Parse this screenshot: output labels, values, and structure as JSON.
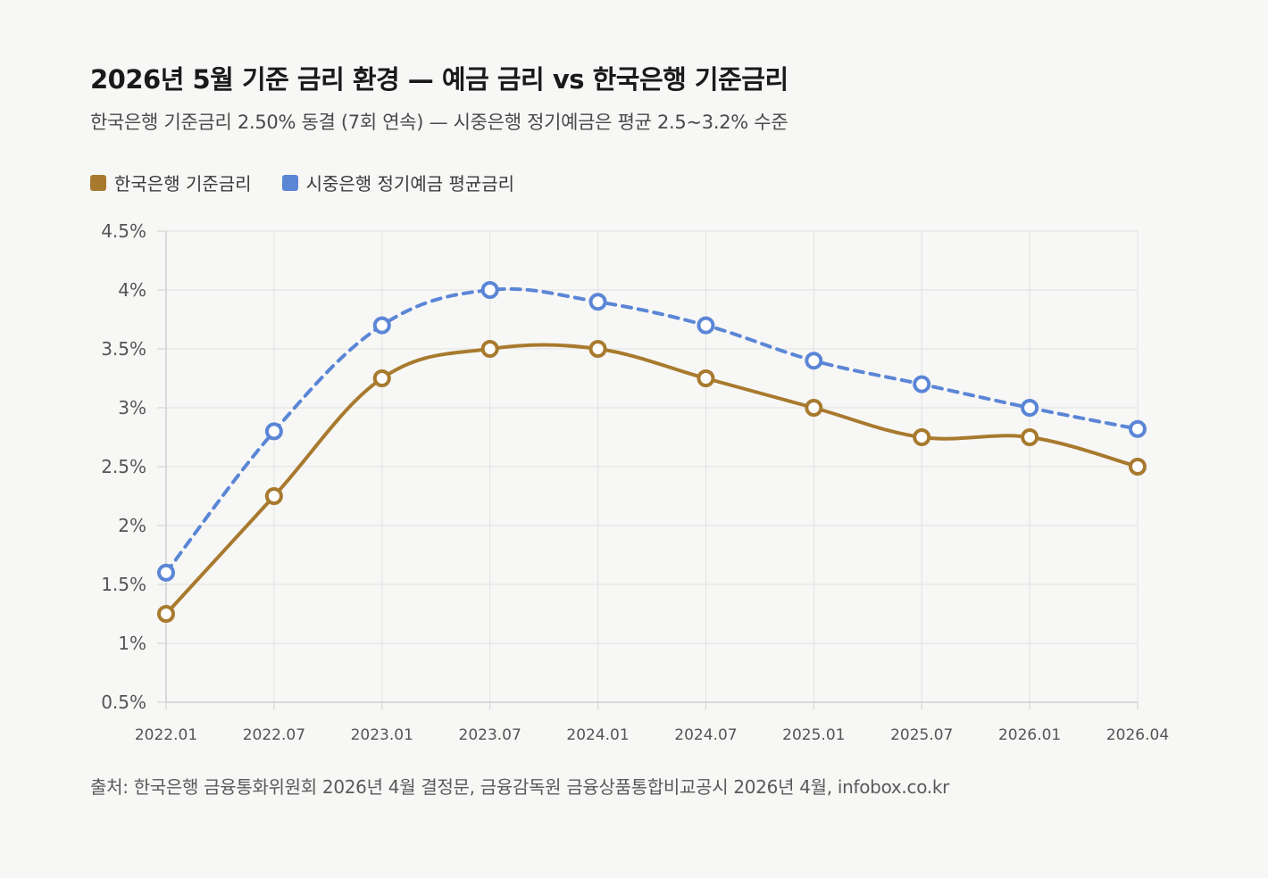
{
  "title": "2026년 5월 기준 금리 환경 — 예금 금리 vs 한국은행 기준금리",
  "subtitle": "한국은행 기준금리 2.50% 동결 (7회 연속) — 시중은행 정기예금은 평균 2.5~3.2% 수준",
  "source": "출처: 한국은행 금융통화위원회 2026년 4월 결정문, 금융감독원 금융상품통합비교공시 2026년 4월, infobox.co.kr",
  "colors": {
    "base_rate": "#a87a2e",
    "deposit_rate": "#5b86d6",
    "grid": "#e1e1e1",
    "axis": "#cfcfcf",
    "tick_text": "#555555"
  },
  "chart_data": {
    "type": "line",
    "categories": [
      "2022.01",
      "2022.07",
      "2023.01",
      "2023.07",
      "2024.01",
      "2024.07",
      "2025.01",
      "2025.07",
      "2026.01",
      "2026.04"
    ],
    "ylim": [
      0.5,
      4.5
    ],
    "yticks": [
      "0.5%",
      "1%",
      "1.5%",
      "2%",
      "2.5%",
      "3%",
      "3.5%",
      "4%",
      "4.5%"
    ],
    "ytick_values": [
      0.5,
      1,
      1.5,
      2,
      2.5,
      3,
      3.5,
      4,
      4.5
    ],
    "grid": true,
    "legend_position": "top-left",
    "series": [
      {
        "name": "한국은행 기준금리",
        "style": "solid",
        "values": [
          1.25,
          2.25,
          3.25,
          3.5,
          3.5,
          3.25,
          3.0,
          2.75,
          2.75,
          2.5
        ]
      },
      {
        "name": "시중은행 정기예금 평균금리",
        "style": "dashed",
        "values": [
          1.6,
          2.8,
          3.7,
          4.0,
          3.9,
          3.7,
          3.4,
          3.2,
          3.0,
          2.82
        ]
      }
    ]
  }
}
